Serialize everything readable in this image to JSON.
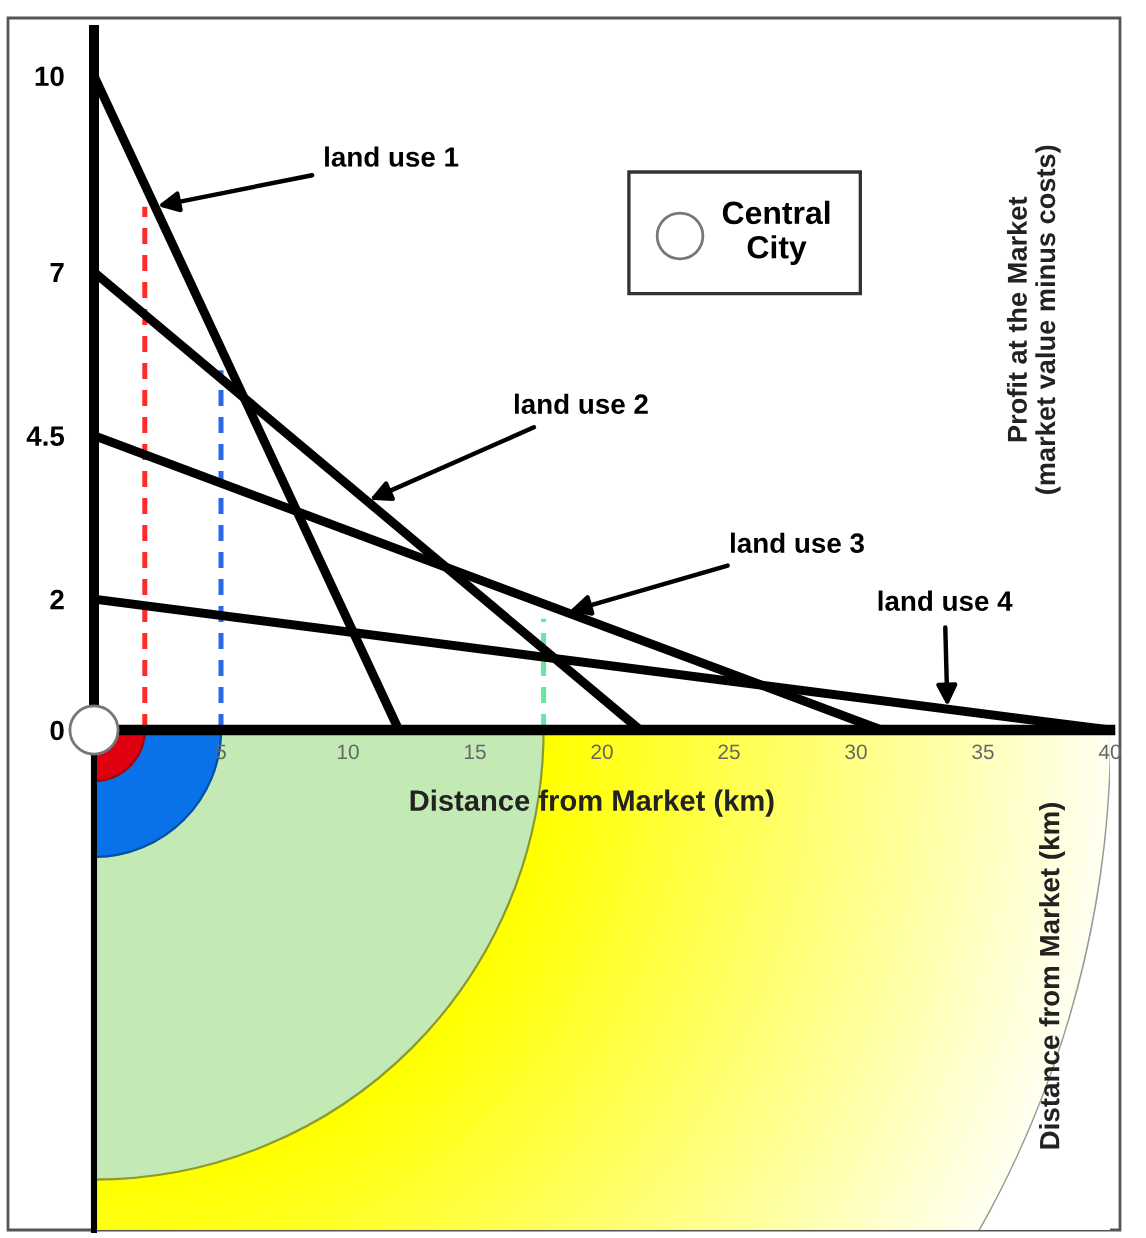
{
  "chart_data": {
    "type": "line",
    "xlabel": "Distance from Market (km)",
    "ylabel": "Profit at the Market\n(market value minus costs)",
    "annotations": [
      {
        "text": "land use 1",
        "x": 2.4,
        "y": 8
      },
      {
        "text": "land use 2",
        "x": 10.75,
        "y": 3.5
      },
      {
        "text": "land use 3",
        "x": 18.6,
        "y": 1.8
      },
      {
        "text": "land use 4",
        "x": 33.6,
        "y": 0.32
      },
      "Distance from Market (km)"
    ],
    "xlim": [
      0,
      40
    ],
    "xticks": [
      5,
      10,
      15,
      20,
      25,
      30,
      35,
      40
    ],
    "ylim": [
      0,
      10.7
    ],
    "yticks": [
      0,
      2,
      4.5,
      7,
      10
    ],
    "series": [
      {
        "color": "#000000",
        "x": [
          0,
          12
        ],
        "values": [
          10,
          0
        ]
      },
      {
        "color": "#000000",
        "x": [
          0,
          21.5
        ],
        "values": [
          7,
          0
        ]
      },
      {
        "color": "#000000",
        "x": [
          0,
          31
        ],
        "values": [
          4.5,
          0
        ]
      },
      {
        "color": "#000000",
        "x": [
          0,
          40
        ],
        "values": [
          2,
          0
        ]
      },
      {
        "color": "#ff2a2a",
        "x": [
          2,
          2
        ],
        "values": [
          0,
          8
        ],
        "line_style": "dashed"
      },
      {
        "color": "#2a6ae8",
        "x": [
          5,
          5
        ],
        "values": [
          0,
          5.5
        ],
        "line_style": "dashed"
      },
      {
        "color": "#66e8a0",
        "x": [
          17.7,
          17.7
        ],
        "values": [
          0,
          1.7
        ],
        "line_style": "dashed"
      },
      {
        "name": "Central\nCity",
        "type": "scatter",
        "color": "#ffffff",
        "x": [
          0
        ],
        "values": [
          0
        ],
        "marker": "circle"
      }
    ],
    "legend": "top right",
    "marker": "none",
    "line_style": "solid"
  }
}
